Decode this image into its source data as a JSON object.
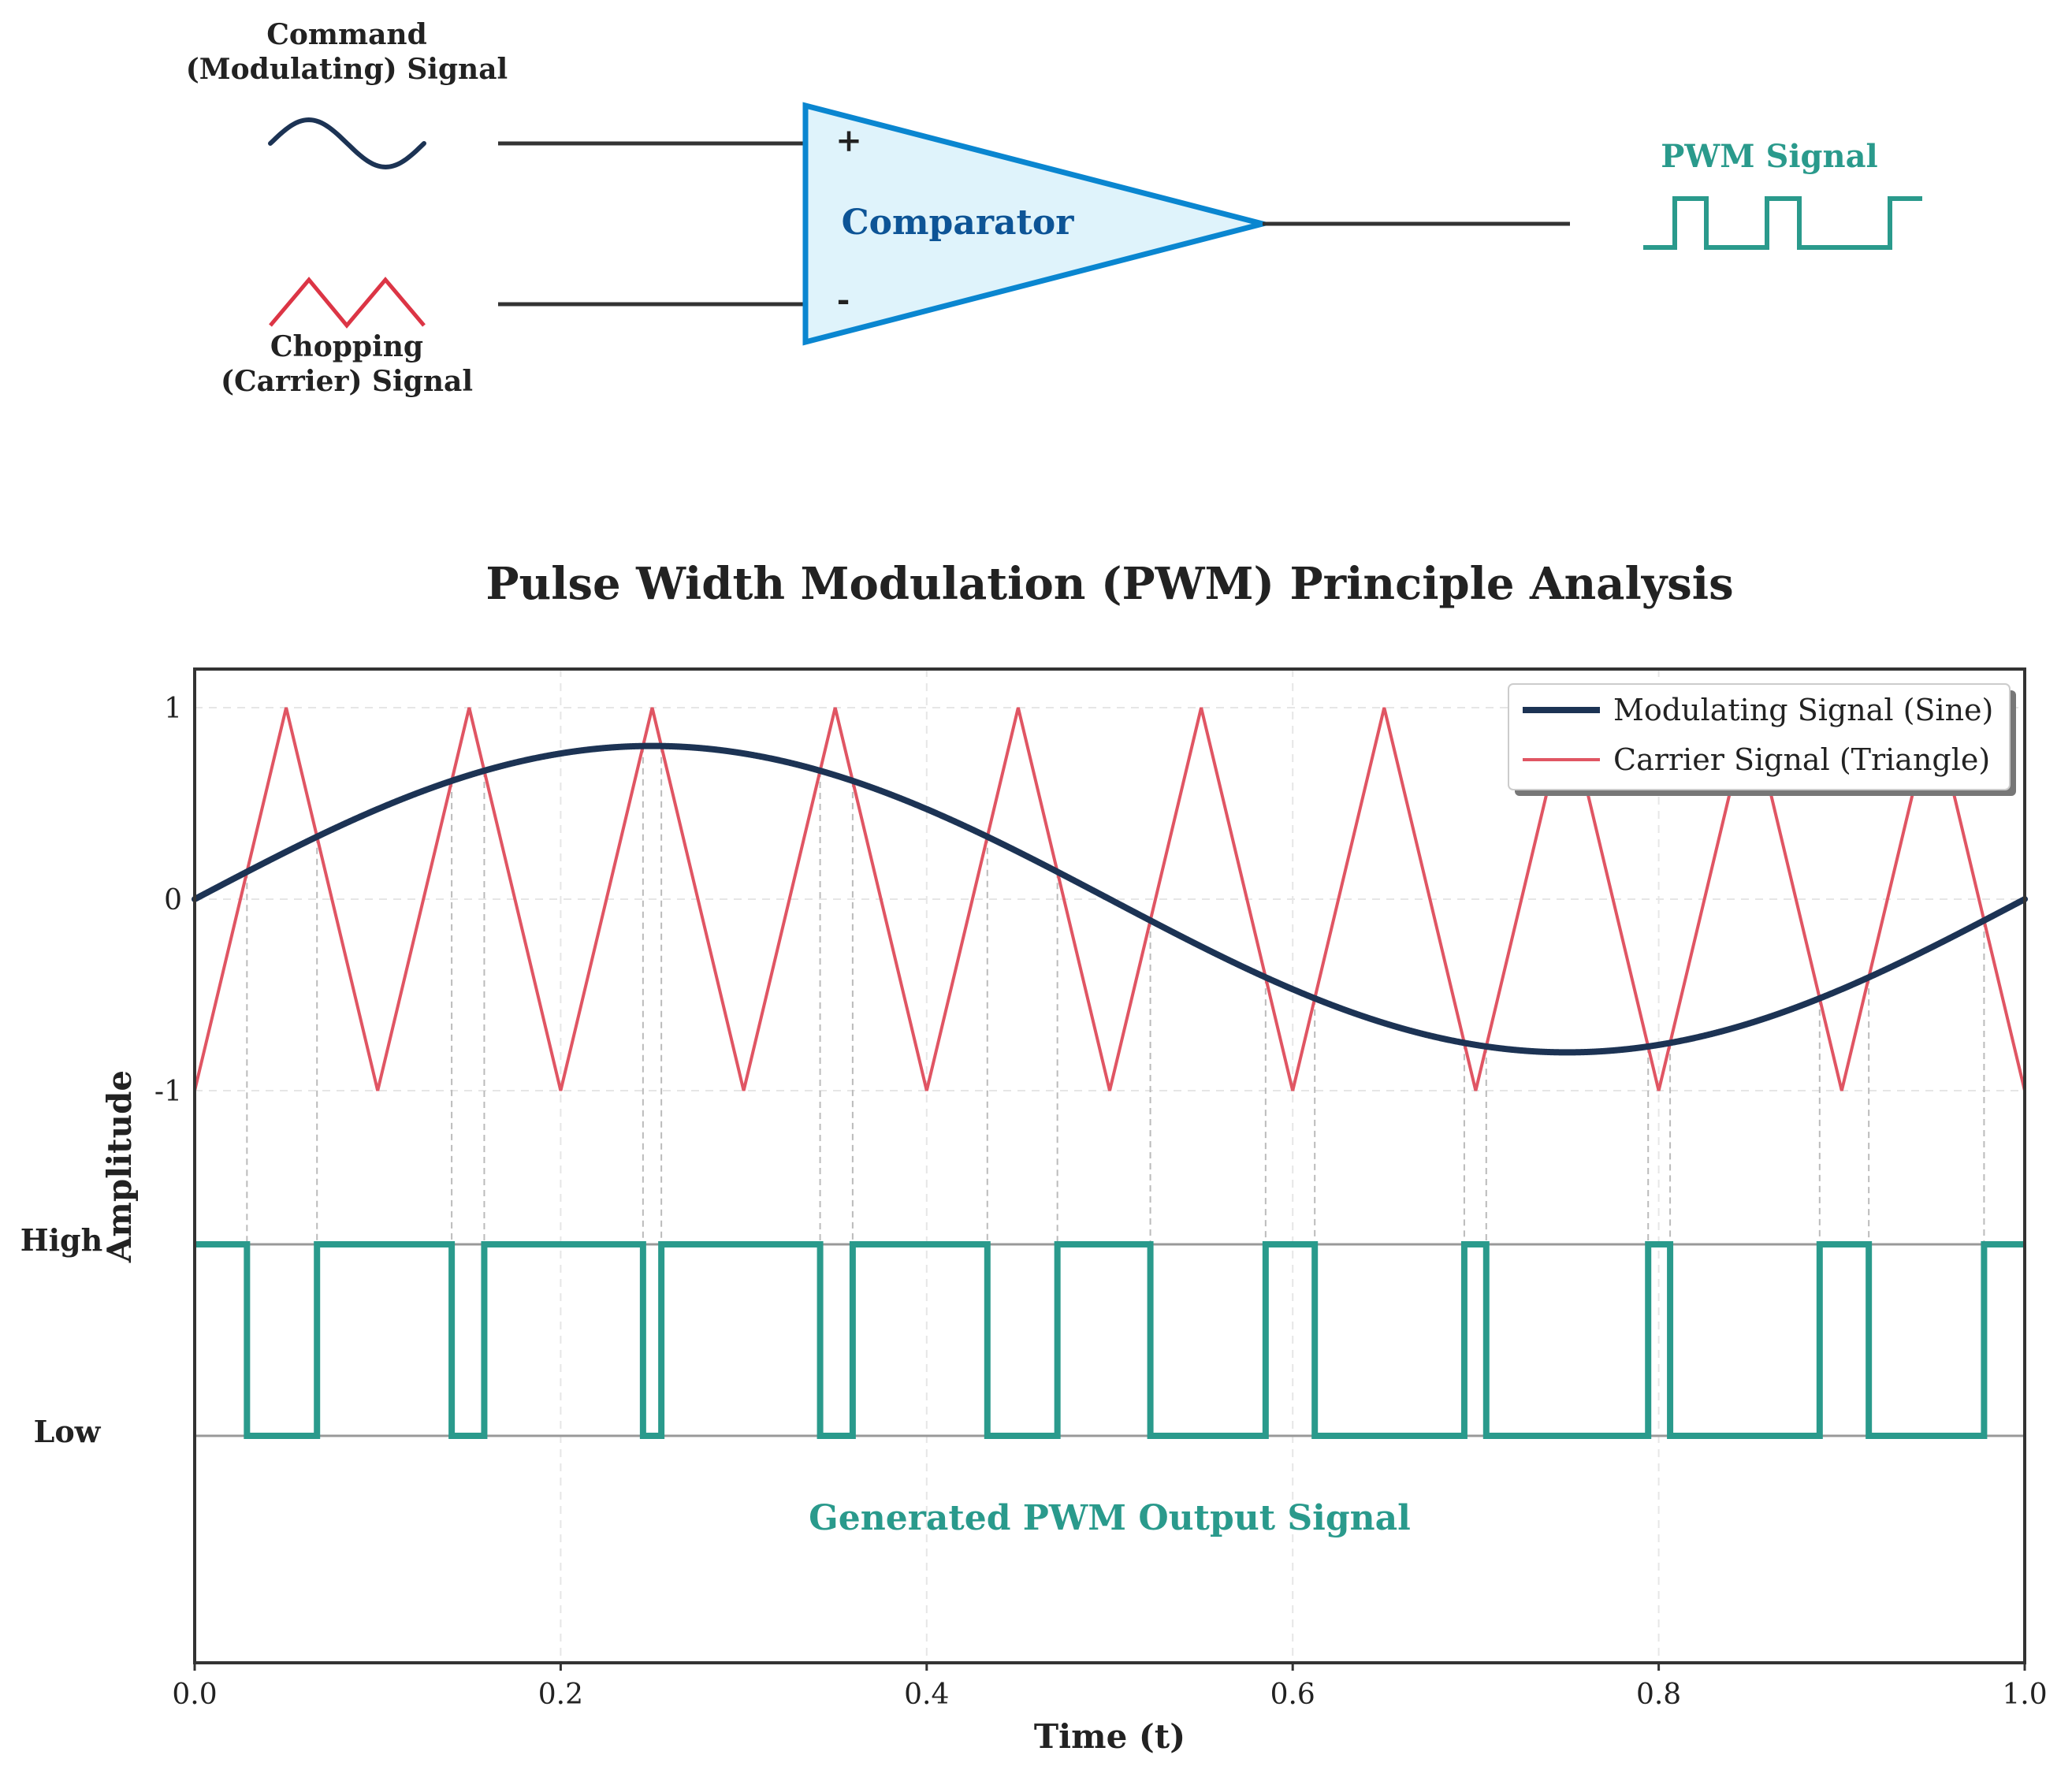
{
  "diagram": {
    "command_signal_label_line1": "Command",
    "command_signal_label_line2": "(Modulating) Signal",
    "carrier_signal_label_line1": "Chopping",
    "carrier_signal_label_line2": "(Carrier) Signal",
    "plus_sign": "+",
    "minus_sign": "-",
    "comparator_label": "Comparator",
    "pwm_label": "PWM Signal"
  },
  "colors": {
    "navy": "#1c3354",
    "red": "#e05563",
    "red_icon": "#dc3545",
    "teal": "#2a9a8c",
    "comparator_stroke": "#0a86d0",
    "comparator_fill": "#dff3fb",
    "comparator_text": "#0d5496",
    "axis": "#333333"
  },
  "chart_data": {
    "type": "line",
    "title": "Pulse Width Modulation (PWM) Principle Analysis",
    "xlabel": "Time (t)",
    "ylabel": "Amplitude",
    "xlim": [
      0.0,
      1.0
    ],
    "xticks": [
      0.0,
      0.2,
      0.4,
      0.6,
      0.8,
      1.0
    ],
    "xtick_labels": [
      "0.0",
      "0.2",
      "0.4",
      "0.6",
      "0.8",
      "1.0"
    ],
    "yticks": [
      1,
      0,
      -1
    ],
    "ytick_labels": [
      "1",
      "0",
      "-1"
    ],
    "grid": true,
    "legend_position": "top-right",
    "series": [
      {
        "name": "Modulating Signal (Sine)",
        "kind": "sine",
        "amplitude": 0.8,
        "frequency": 1,
        "color": "#1c3354"
      },
      {
        "name": "Carrier Signal (Triangle)",
        "kind": "triangle",
        "amplitude": 1.0,
        "frequency": 10,
        "color": "#e05563"
      }
    ],
    "pwm_output": {
      "label": "Generated PWM Output Signal",
      "high_label": "High",
      "low_label": "Low",
      "color": "#2a9a8c",
      "rule": "High when modulating signal > carrier signal"
    }
  }
}
